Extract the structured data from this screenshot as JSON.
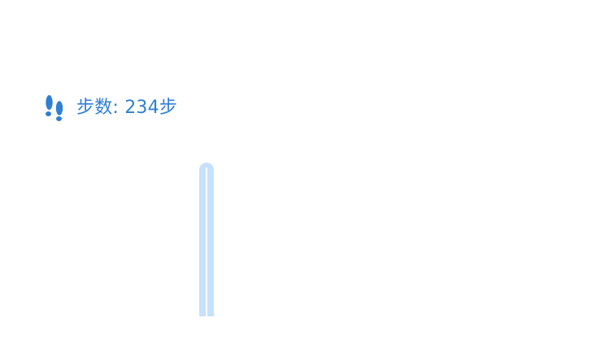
{
  "steps": {
    "label": "步数:",
    "value": "234",
    "unit": "步",
    "icon": "footprints-icon",
    "color": "#2f7fd3"
  },
  "bar": {
    "color": "#c6e1fb"
  }
}
